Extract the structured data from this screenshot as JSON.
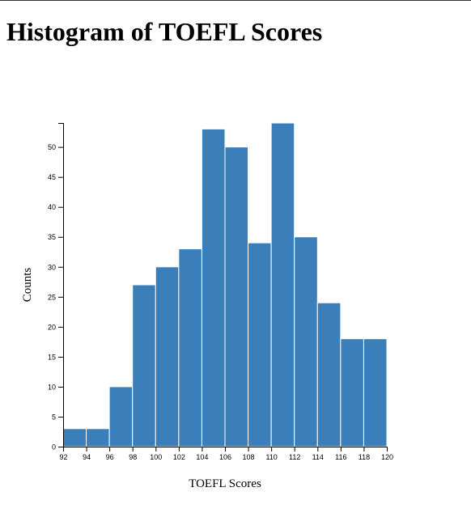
{
  "page": {
    "title": "Histogram of TOEFL Scores"
  },
  "chart_data": {
    "type": "bar",
    "title": "Histogram of TOEFL Scores",
    "xlabel": "TOEFL Scores",
    "ylabel": "Counts",
    "bins": [
      {
        "x0": 92,
        "x1": 94,
        "count": 3
      },
      {
        "x0": 94,
        "x1": 96,
        "count": 3
      },
      {
        "x0": 96,
        "x1": 98,
        "count": 10
      },
      {
        "x0": 98,
        "x1": 100,
        "count": 27
      },
      {
        "x0": 100,
        "x1": 102,
        "count": 30
      },
      {
        "x0": 102,
        "x1": 104,
        "count": 33
      },
      {
        "x0": 104,
        "x1": 106,
        "count": 53
      },
      {
        "x0": 106,
        "x1": 108,
        "count": 50
      },
      {
        "x0": 108,
        "x1": 110,
        "count": 34
      },
      {
        "x0": 110,
        "x1": 112,
        "count": 54
      },
      {
        "x0": 112,
        "x1": 114,
        "count": 35
      },
      {
        "x0": 114,
        "x1": 116,
        "count": 24
      },
      {
        "x0": 116,
        "x1": 118,
        "count": 18
      },
      {
        "x0": 118,
        "x1": 120,
        "count": 18
      }
    ],
    "xlim": [
      92,
      120
    ],
    "ylim": [
      0,
      54
    ],
    "x_ticks": [
      92,
      94,
      96,
      98,
      100,
      102,
      104,
      106,
      108,
      110,
      112,
      114,
      116,
      118,
      120
    ],
    "y_ticks": [
      0,
      5,
      10,
      15,
      20,
      25,
      30,
      35,
      40,
      45,
      50
    ],
    "bar_color": "#3a7fba",
    "bar_stroke": "#ffffff",
    "grid": false,
    "legend": "none"
  }
}
